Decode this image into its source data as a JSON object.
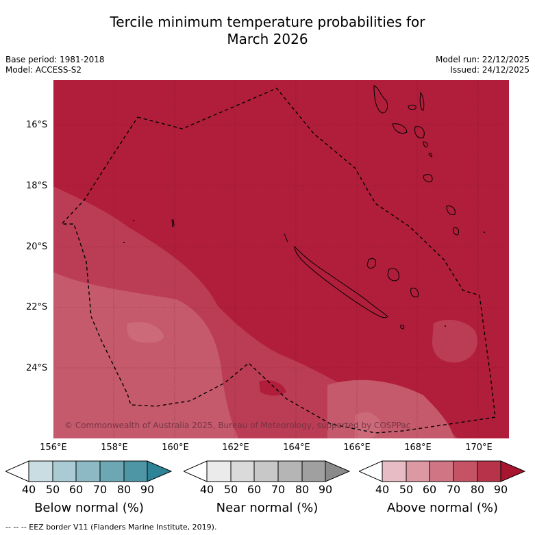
{
  "title_line1": "Tercile minimum temperature probabilities for",
  "title_line2": "March 2026",
  "meta_left": {
    "base_period": "Base period: 1981-2018",
    "model": "Model: ACCESS-S2"
  },
  "meta_right": {
    "model_run": "Model run: 22/12/2025",
    "issued": "Issued: 24/12/2025"
  },
  "lat_labels": [
    "16°S",
    "18°S",
    "20°S",
    "22°S",
    "24°S"
  ],
  "lon_labels": [
    "156°E",
    "158°E",
    "160°E",
    "162°E",
    "164°E",
    "166°E",
    "168°E",
    "170°E"
  ],
  "copyright": "© Commonwealth of Australia 2025, Bureau of Meteorology, supported by COSPPac",
  "legends": [
    {
      "title": "Below normal (%)",
      "ticks": [
        "40",
        "50",
        "60",
        "70",
        "80",
        "90"
      ],
      "colors": [
        "#c9dde3",
        "#aacbd3",
        "#8cb9c4",
        "#6da7b4",
        "#4e95a5",
        "#2f8396"
      ]
    },
    {
      "title": "Near normal (%)",
      "ticks": [
        "40",
        "50",
        "60",
        "70",
        "80",
        "90"
      ],
      "colors": [
        "#ebebeb",
        "#dadada",
        "#c8c8c8",
        "#b5b5b5",
        "#a0a0a0",
        "#8a8a8a"
      ]
    },
    {
      "title": "Above normal (%)",
      "ticks": [
        "40",
        "50",
        "60",
        "70",
        "80",
        "90"
      ],
      "colors": [
        "#e8bcc4",
        "#dc98a3",
        "#cf7583",
        "#c45365",
        "#b73349",
        "#a8152f"
      ]
    }
  ],
  "footnote": "--  --  -- EEZ border V11 (Flanders Marine Institute, 2019).",
  "map_colors": {
    "dominant": "#b01e3b",
    "band2": "#bb3d55",
    "band3": "#c55a6c",
    "band4": "#cc6a7a"
  }
}
